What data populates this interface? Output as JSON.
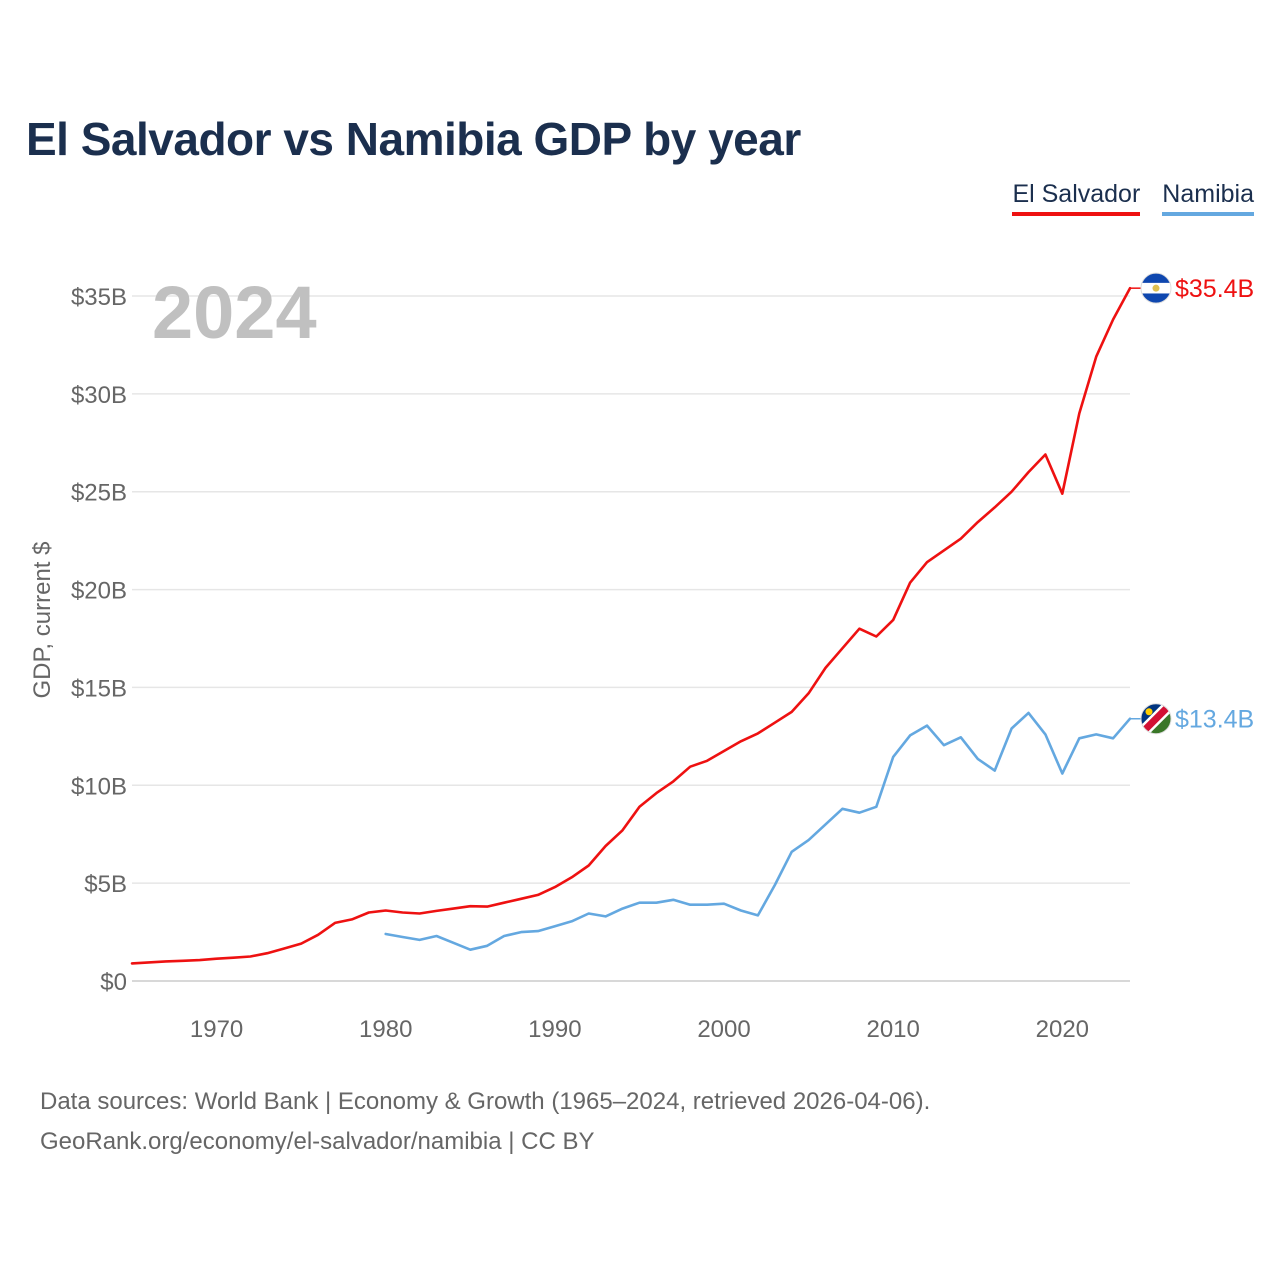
{
  "header": {
    "title": "El Salvador vs Namibia GDP by year"
  },
  "legend": {
    "items": [
      {
        "label": "El Salvador"
      },
      {
        "label": "Namibia"
      }
    ]
  },
  "footer": {
    "line1": "Data sources: World Bank | Economy & Growth (1965–2024, retrieved 2026-04-06).",
    "line2": "GeoRank.org/economy/el-salvador/namibia | CC BY"
  },
  "colors": {
    "el_salvador": "#ee1111",
    "namibia": "#64a8e0",
    "title": "#1b2f4e",
    "year": "#c0c0c0"
  },
  "chart_data": {
    "type": "line",
    "title": "El Salvador vs Namibia GDP by year",
    "year_label": "2024",
    "xlabel": "",
    "ylabel": "GDP, current $",
    "xlim": [
      1965,
      2024
    ],
    "ylim": [
      0,
      35
    ],
    "y_ticks": [
      0,
      5,
      10,
      15,
      20,
      25,
      30,
      35
    ],
    "y_tick_labels": [
      "$0",
      "$5B",
      "$10B",
      "$15B",
      "$20B",
      "$25B",
      "$30B",
      "$35B"
    ],
    "x_ticks": [
      1970,
      1980,
      1990,
      2000,
      2010,
      2020
    ],
    "x_tick_labels": [
      "1970",
      "1980",
      "1990",
      "2000",
      "2010",
      "2020"
    ],
    "grid": true,
    "legend_position": "top-right",
    "series": [
      {
        "name": "El Salvador",
        "color": "#ee1111",
        "end_label": "$35.4B",
        "flag_icon": "el-salvador-flag-icon",
        "x": [
          1965,
          1966,
          1967,
          1968,
          1969,
          1970,
          1971,
          1972,
          1973,
          1974,
          1975,
          1976,
          1977,
          1978,
          1979,
          1980,
          1981,
          1982,
          1983,
          1984,
          1985,
          1986,
          1987,
          1988,
          1989,
          1990,
          1991,
          1992,
          1993,
          1994,
          1995,
          1996,
          1997,
          1998,
          1999,
          2000,
          2001,
          2002,
          2003,
          2004,
          2005,
          2006,
          2007,
          2008,
          2009,
          2010,
          2011,
          2012,
          2013,
          2014,
          2015,
          2016,
          2017,
          2018,
          2019,
          2020,
          2021,
          2022,
          2023,
          2024
        ],
        "values": [
          0.9,
          0.95,
          1.0,
          1.03,
          1.07,
          1.14,
          1.19,
          1.25,
          1.42,
          1.66,
          1.91,
          2.36,
          2.97,
          3.15,
          3.5,
          3.6,
          3.5,
          3.45,
          3.58,
          3.7,
          3.82,
          3.8,
          4.0,
          4.2,
          4.4,
          4.8,
          5.3,
          5.9,
          6.9,
          7.7,
          8.9,
          9.6,
          10.2,
          10.95,
          11.25,
          11.75,
          12.25,
          12.65,
          13.2,
          13.75,
          14.7,
          16.0,
          17.0,
          18.0,
          17.6,
          18.45,
          20.35,
          21.4,
          22.0,
          22.6,
          23.45,
          24.2,
          25.0,
          26.0,
          26.9,
          24.9,
          29.0,
          31.9,
          33.8,
          35.4
        ]
      },
      {
        "name": "Namibia",
        "color": "#64a8e0",
        "end_label": "$13.4B",
        "flag_icon": "namibia-flag-icon",
        "x": [
          1980,
          1981,
          1982,
          1983,
          1984,
          1985,
          1986,
          1987,
          1988,
          1989,
          1990,
          1991,
          1992,
          1993,
          1994,
          1995,
          1996,
          1997,
          1998,
          1999,
          2000,
          2001,
          2002,
          2003,
          2004,
          2005,
          2006,
          2007,
          2008,
          2009,
          2010,
          2011,
          2012,
          2013,
          2014,
          2015,
          2016,
          2017,
          2018,
          2019,
          2020,
          2021,
          2022,
          2023,
          2024
        ],
        "values": [
          2.4,
          2.25,
          2.1,
          2.3,
          1.95,
          1.6,
          1.8,
          2.3,
          2.5,
          2.55,
          2.8,
          3.05,
          3.45,
          3.3,
          3.7,
          4.0,
          4.0,
          4.15,
          3.9,
          3.9,
          3.95,
          3.6,
          3.35,
          4.9,
          6.6,
          7.2,
          8.0,
          8.8,
          8.6,
          8.9,
          11.45,
          12.55,
          13.05,
          12.05,
          12.45,
          11.35,
          10.75,
          12.9,
          13.7,
          12.6,
          10.6,
          12.4,
          12.6,
          12.4,
          13.4
        ]
      }
    ]
  }
}
